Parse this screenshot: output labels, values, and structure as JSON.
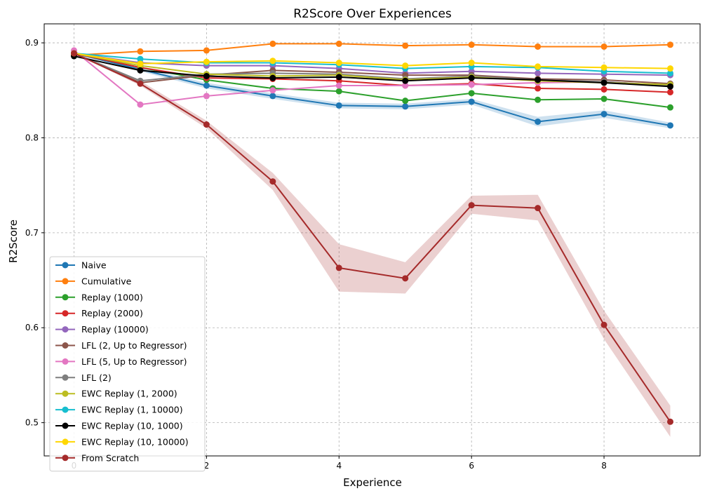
{
  "chart_data": {
    "type": "line",
    "title": "R2Score Over Experiences",
    "xlabel": "Experience",
    "ylabel": "R2Score",
    "xlim": [
      -0.45,
      9.45
    ],
    "ylim": [
      0.465,
      0.92
    ],
    "xticks": [
      0,
      2,
      4,
      6,
      8
    ],
    "yticks": [
      0.5,
      0.6,
      0.7,
      0.8,
      0.9
    ],
    "ytick_labels": [
      "0.5",
      "0.6",
      "0.7",
      "0.8",
      "0.9"
    ],
    "grid": true,
    "grid_style": "dashed",
    "legend_position": "lower-left",
    "x": [
      0,
      1,
      2,
      3,
      4,
      5,
      6,
      7,
      8,
      9
    ],
    "series": [
      {
        "name": "Naive",
        "color": "#1f77b4",
        "values": [
          0.889,
          0.872,
          0.855,
          0.844,
          0.834,
          0.833,
          0.838,
          0.817,
          0.825,
          0.813
        ],
        "band": [
          [
            0.889,
            0.889
          ],
          [
            0.87,
            0.874
          ],
          [
            0.852,
            0.858
          ],
          [
            0.841,
            0.847
          ],
          [
            0.831,
            0.837
          ],
          [
            0.83,
            0.836
          ],
          [
            0.835,
            0.841
          ],
          [
            0.812,
            0.822
          ],
          [
            0.821,
            0.829
          ],
          [
            0.81,
            0.816
          ]
        ]
      },
      {
        "name": "Cumulative",
        "color": "#ff7f0e",
        "values": [
          0.887,
          0.891,
          0.892,
          0.899,
          0.899,
          0.897,
          0.898,
          0.896,
          0.896,
          0.898
        ]
      },
      {
        "name": "Replay (1000)",
        "color": "#2ca02c",
        "values": [
          0.889,
          0.874,
          0.861,
          0.852,
          0.849,
          0.839,
          0.847,
          0.84,
          0.841,
          0.832
        ]
      },
      {
        "name": "Replay (2000)",
        "color": "#d62728",
        "values": [
          0.889,
          0.874,
          0.863,
          0.862,
          0.86,
          0.855,
          0.857,
          0.852,
          0.851,
          0.848
        ]
      },
      {
        "name": "Replay (10000)",
        "color": "#9467bd",
        "values": [
          0.889,
          0.879,
          0.876,
          0.876,
          0.873,
          0.868,
          0.87,
          0.868,
          0.867,
          0.866
        ]
      },
      {
        "name": "LFL (2, Up to Regressor)",
        "color": "#8c564b",
        "values": [
          0.889,
          0.858,
          0.866,
          0.871,
          0.869,
          0.866,
          0.866,
          0.862,
          0.861,
          0.857
        ]
      },
      {
        "name": "LFL (5, Up to Regressor)",
        "color": "#e377c2",
        "values": [
          0.892,
          0.835,
          0.844,
          0.85,
          0.855,
          0.855,
          0.856,
          0.858,
          0.859,
          0.855
        ]
      },
      {
        "name": "LFL (2)",
        "color": "#7f7f7f",
        "values": [
          0.889,
          0.86,
          0.867,
          0.868,
          0.867,
          0.862,
          0.865,
          0.861,
          0.859,
          0.855
        ]
      },
      {
        "name": "EWC Replay (1, 2000)",
        "color": "#bcbd22",
        "values": [
          0.889,
          0.876,
          0.867,
          0.865,
          0.866,
          0.861,
          0.864,
          0.86,
          0.858,
          0.856
        ]
      },
      {
        "name": "EWC Replay (1, 10000)",
        "color": "#17becf",
        "values": [
          0.889,
          0.883,
          0.879,
          0.879,
          0.877,
          0.873,
          0.875,
          0.874,
          0.87,
          0.868
        ]
      },
      {
        "name": "EWC Replay (10, 1000)",
        "color": "#000000",
        "values": [
          0.886,
          0.871,
          0.865,
          0.863,
          0.864,
          0.86,
          0.863,
          0.861,
          0.858,
          0.854
        ]
      },
      {
        "name": "EWC Replay (10, 10000)",
        "color": "#ffd700",
        "values": [
          0.889,
          0.878,
          0.88,
          0.881,
          0.879,
          0.876,
          0.879,
          0.875,
          0.874,
          0.873
        ]
      },
      {
        "name": "From Scratch",
        "color": "#a52a2a",
        "values": [
          0.889,
          0.857,
          0.814,
          0.754,
          0.663,
          0.652,
          0.729,
          0.726,
          0.603,
          0.501
        ],
        "band": [
          [
            0.889,
            0.889
          ],
          [
            0.855,
            0.86
          ],
          [
            0.81,
            0.818
          ],
          [
            0.745,
            0.763
          ],
          [
            0.638,
            0.688
          ],
          [
            0.636,
            0.669
          ],
          [
            0.72,
            0.739
          ],
          [
            0.713,
            0.74
          ],
          [
            0.588,
            0.618
          ],
          [
            0.485,
            0.518
          ]
        ]
      }
    ]
  }
}
